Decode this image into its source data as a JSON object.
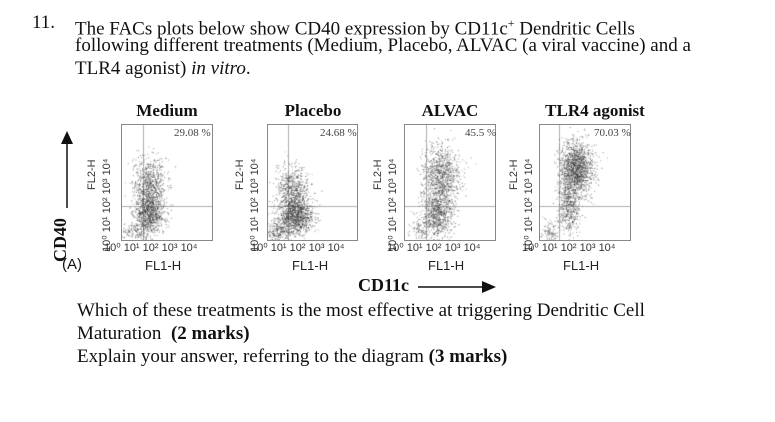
{
  "question": {
    "number": "11.",
    "line1_a": "The FACs plots below show CD40 expression by CD11c",
    "line1_sup": "+",
    "line1_b": " Dendritic Cells",
    "line2": "following different treatments (Medium, Placebo, ALVAC (a viral vaccine) and a",
    "line3_a": "TLR4 agonist) ",
    "line3_italic": "in vitro",
    "line3_b": "."
  },
  "figure": {
    "y_axis_label": "CD40",
    "x_axis_label": "CD11c",
    "panel_label": "(A)",
    "plots": [
      {
        "title": "Medium",
        "percent": "29.08 %",
        "xlabel": "FL1-H",
        "ylabel": "FL2-H"
      },
      {
        "title": "Placebo",
        "percent": "24.68 %",
        "xlabel": "FL1-H",
        "ylabel": "FL2-H"
      },
      {
        "title": "ALVAC",
        "percent": "45.5 %",
        "xlabel": "FL1-H",
        "ylabel": "FL2-H"
      },
      {
        "title": "TLR4 agonist",
        "percent": "70.03 %",
        "xlabel": "FL1-H",
        "ylabel": "FL2-H"
      }
    ],
    "x_ticks": "10⁰ 10¹ 10² 10³ 10⁴",
    "y_ticks": "10⁰ 10¹ 10² 10³ 10⁴",
    "colors": {
      "dots": "#333333",
      "frame": "#888888",
      "gate": "#999999"
    }
  },
  "subquestions": {
    "q1_text": "Which of these treatments is the most effective at triggering Dendritic Cell",
    "q1_text2": "Maturation  ",
    "q1_marks": "(2 marks)",
    "q2_text": "Explain your answer, referring to the diagram ",
    "q2_marks": "(3 marks)"
  }
}
